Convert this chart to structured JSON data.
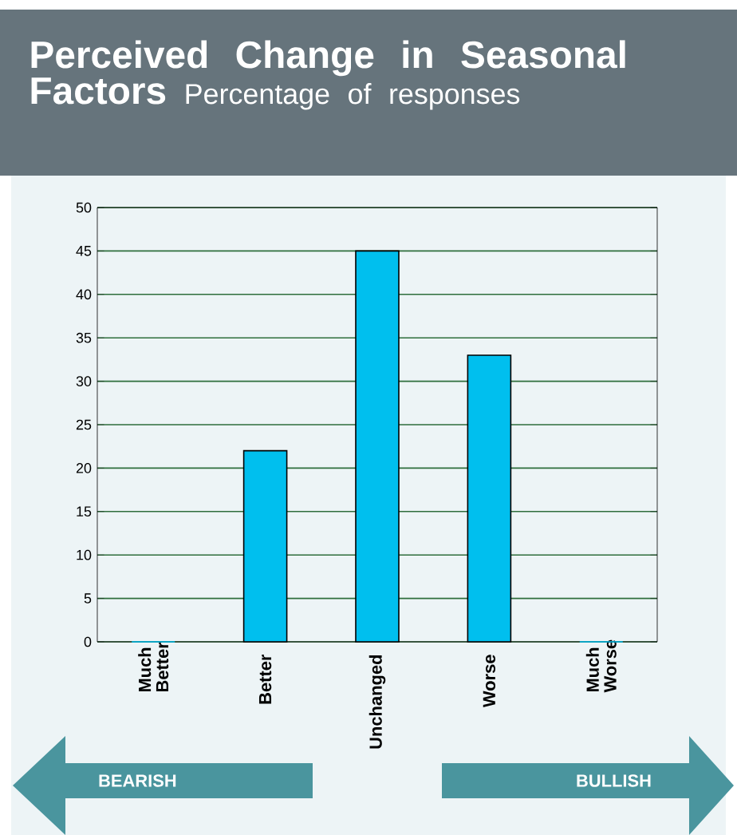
{
  "chart_data": {
    "type": "bar",
    "title": "Perceived Change in Seasonal Factors",
    "subtitle": "Percentage of responses",
    "categories": [
      "Much Better",
      "Better",
      "Unchanged",
      "Worse",
      "Much Worse"
    ],
    "values": [
      0,
      22,
      45,
      33,
      0
    ],
    "color": "#00bfee",
    "ylim": [
      0,
      50
    ],
    "yticks": [
      0,
      5,
      10,
      15,
      20,
      25,
      30,
      35,
      40,
      45,
      50
    ],
    "grid": "y",
    "annotations": [
      "BEARISH",
      "BULLISH"
    ]
  }
}
